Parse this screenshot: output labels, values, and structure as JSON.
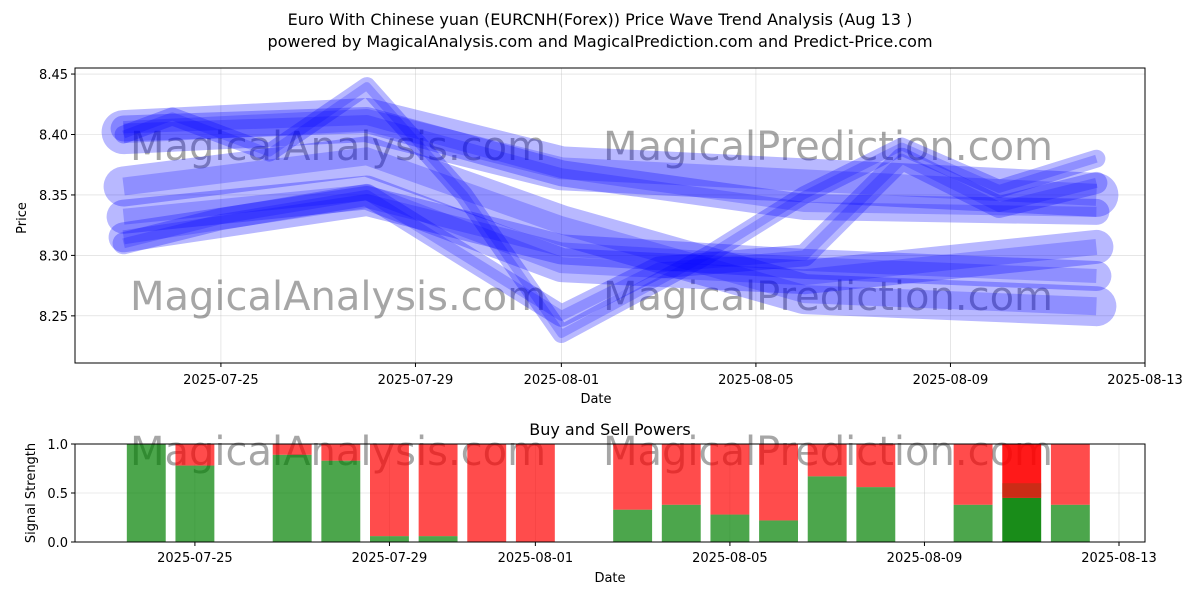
{
  "header": {
    "title": "Euro With Chinese yuan (EURCNH(Forex)) Price Wave Trend Analysis (Aug 13 )",
    "subtitle": "powered by MagicalAnalysis.com and MagicalPrediction.com and Predict-Price.com"
  },
  "watermarks": [
    "MagicalAnalysis.com",
    "MagicalPrediction.com"
  ],
  "colors": {
    "wave": "#0000ff",
    "buy": "#008000",
    "sell": "#ff0000",
    "grid": "#b0b0b0"
  },
  "chart_data": [
    {
      "type": "line",
      "name": "price-wave",
      "xlabel": "Date",
      "ylabel": "Price",
      "xlim": [
        "2025-07-22",
        "2025-08-13"
      ],
      "ylim": [
        8.211,
        8.455
      ],
      "x_ticks": [
        "2025-07-25",
        "2025-07-29",
        "2025-08-01",
        "2025-08-05",
        "2025-08-09",
        "2025-08-13"
      ],
      "y_ticks": [
        8.25,
        8.3,
        8.35,
        8.4,
        8.45
      ],
      "y_tick_labels": [
        "8.25",
        "8.30",
        "8.35",
        "8.40",
        "8.45"
      ],
      "grid": true,
      "series": [
        {
          "x": [
            "2025-07-23",
            "2025-07-28",
            "2025-08-01",
            "2025-08-12"
          ],
          "values": [
            8.402,
            8.412,
            8.372,
            8.35
          ]
        },
        {
          "x": [
            "2025-07-23",
            "2025-07-28",
            "2025-08-01",
            "2025-08-06",
            "2025-08-12"
          ],
          "values": [
            8.315,
            8.345,
            8.305,
            8.293,
            8.283
          ]
        },
        {
          "x": [
            "2025-07-23",
            "2025-07-28",
            "2025-08-01",
            "2025-08-06",
            "2025-08-12"
          ],
          "values": [
            8.357,
            8.382,
            8.325,
            8.268,
            8.258
          ]
        },
        {
          "x": [
            "2025-07-23",
            "2025-07-28",
            "2025-08-01",
            "2025-08-06",
            "2025-08-12"
          ],
          "values": [
            8.405,
            8.412,
            8.368,
            8.34,
            8.336
          ]
        },
        {
          "x": [
            "2025-07-23",
            "2025-07-28",
            "2025-08-01",
            "2025-08-06",
            "2025-08-12"
          ],
          "values": [
            8.332,
            8.352,
            8.292,
            8.282,
            8.307
          ]
        },
        {
          "x": [
            "2025-07-23",
            "2025-07-24",
            "2025-07-26",
            "2025-07-28",
            "2025-07-30",
            "2025-08-01",
            "2025-08-04",
            "2025-08-06",
            "2025-08-08",
            "2025-08-10",
            "2025-08-12"
          ],
          "values": [
            8.4,
            8.415,
            8.385,
            8.44,
            8.35,
            8.235,
            8.3,
            8.35,
            8.39,
            8.355,
            8.38
          ]
        },
        {
          "x": [
            "2025-07-23",
            "2025-07-25",
            "2025-07-28",
            "2025-07-30",
            "2025-08-01",
            "2025-08-03",
            "2025-08-06",
            "2025-08-08",
            "2025-08-10",
            "2025-08-12"
          ],
          "values": [
            8.31,
            8.33,
            8.35,
            8.3,
            8.25,
            8.29,
            8.3,
            8.38,
            8.34,
            8.36
          ]
        }
      ]
    },
    {
      "type": "bar",
      "name": "buy-sell-powers",
      "title": "Buy and Sell Powers",
      "xlabel": "Date",
      "ylabel": "Signal Strength",
      "xlim": [
        "2025-07-22",
        "2025-08-13"
      ],
      "ylim": [
        0,
        1
      ],
      "y_ticks": [
        0,
        0.5,
        1
      ],
      "y_tick_labels": [
        "0.0",
        "0.5",
        "1.0"
      ],
      "x_ticks": [
        "2025-07-25",
        "2025-07-29",
        "2025-08-01",
        "2025-08-05",
        "2025-08-09",
        "2025-08-13"
      ],
      "dates": [
        "2025-07-24",
        "2025-07-25",
        "2025-07-27",
        "2025-07-28",
        "2025-07-29",
        "2025-07-30",
        "2025-07-31",
        "2025-08-01",
        "2025-08-03",
        "2025-08-04",
        "2025-08-05",
        "2025-08-06",
        "2025-08-07",
        "2025-08-08",
        "2025-08-10",
        "2025-08-11",
        "2025-08-12"
      ],
      "series": [
        {
          "name": "buy",
          "values": [
            1.0,
            0.78,
            0.89,
            0.83,
            0.06,
            0.06,
            0.0,
            0.0,
            0.33,
            0.38,
            0.28,
            0.22,
            0.67,
            0.56,
            0.38,
            0.45,
            0.38
          ]
        },
        {
          "name": "sell",
          "values": [
            0.0,
            0.22,
            0.11,
            0.17,
            0.94,
            0.94,
            1.0,
            1.0,
            0.67,
            0.62,
            0.72,
            0.78,
            0.33,
            0.44,
            0.62,
            0.55,
            0.62
          ]
        }
      ],
      "highlight_date": "2025-08-11"
    }
  ]
}
